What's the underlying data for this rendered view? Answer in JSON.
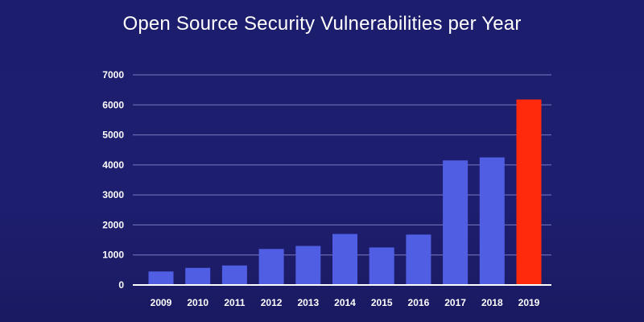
{
  "chart_data": {
    "type": "bar",
    "title": "Open Source Security Vulnerabilities per Year",
    "xlabel": "",
    "ylabel": "",
    "categories": [
      "2009",
      "2010",
      "2011",
      "2012",
      "2013",
      "2014",
      "2015",
      "2016",
      "2017",
      "2018",
      "2019"
    ],
    "values": [
      450,
      570,
      650,
      1200,
      1300,
      1700,
      1250,
      1680,
      4150,
      4250,
      6180
    ],
    "ylim": [
      0,
      7000
    ],
    "yticks": [
      0,
      1000,
      2000,
      3000,
      4000,
      5000,
      6000,
      7000
    ],
    "grid": true,
    "colors": {
      "default_bar": "#4f5ee3",
      "highlight_bar": "#ff2a0c",
      "gridline": "#7a7ac0",
      "baseline": "#ffffff",
      "background": "#1e1e6e"
    },
    "highlight_category": "2019"
  }
}
